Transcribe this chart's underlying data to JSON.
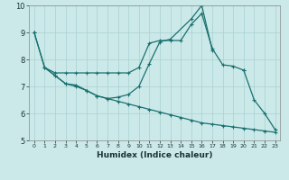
{
  "xlabel": "Humidex (Indice chaleur)",
  "xlim": [
    -0.5,
    23.5
  ],
  "ylim": [
    5,
    10
  ],
  "bg_color": "#cce9e9",
  "line_color": "#1a7070",
  "grid_color": "#a8d0d0",
  "lines": [
    {
      "x": [
        0,
        1,
        2,
        3,
        4,
        5,
        6,
        7,
        8,
        9,
        10,
        11,
        12,
        13,
        14,
        15,
        16,
        17,
        18,
        19,
        20
      ],
      "y": [
        9.0,
        7.7,
        7.5,
        7.5,
        7.5,
        7.5,
        7.5,
        7.5,
        7.5,
        7.5,
        7.7,
        8.6,
        8.7,
        8.7,
        8.7,
        9.3,
        9.7,
        8.4,
        7.8,
        7.75,
        7.6
      ]
    },
    {
      "x": [
        0,
        1,
        2,
        3,
        4,
        5,
        6,
        7,
        8,
        9,
        10,
        11,
        12,
        13,
        15,
        16,
        17
      ],
      "y": [
        9.0,
        7.7,
        7.4,
        7.1,
        7.05,
        6.85,
        6.65,
        6.55,
        6.6,
        6.7,
        7.0,
        7.85,
        8.65,
        8.75,
        9.5,
        10.0,
        8.35
      ]
    },
    {
      "x": [
        1,
        2,
        3,
        4,
        5,
        6,
        7,
        8,
        9,
        10,
        11,
        12,
        13,
        14,
        15,
        16,
        17,
        18,
        19,
        20,
        21,
        22,
        23
      ],
      "y": [
        7.7,
        7.4,
        7.1,
        7.0,
        6.85,
        6.65,
        6.55,
        6.45,
        6.35,
        6.25,
        6.15,
        6.05,
        5.95,
        5.85,
        5.75,
        5.65,
        5.6,
        5.55,
        5.5,
        5.45,
        5.4,
        5.35,
        5.3
      ]
    },
    {
      "comment": "right side drop: from 7.6 at 20, 6.5 at 21, 6.0 at 22, 5.4 at 23",
      "x": [
        20,
        21,
        22,
        23
      ],
      "y": [
        7.6,
        6.5,
        6.0,
        5.4
      ]
    }
  ]
}
